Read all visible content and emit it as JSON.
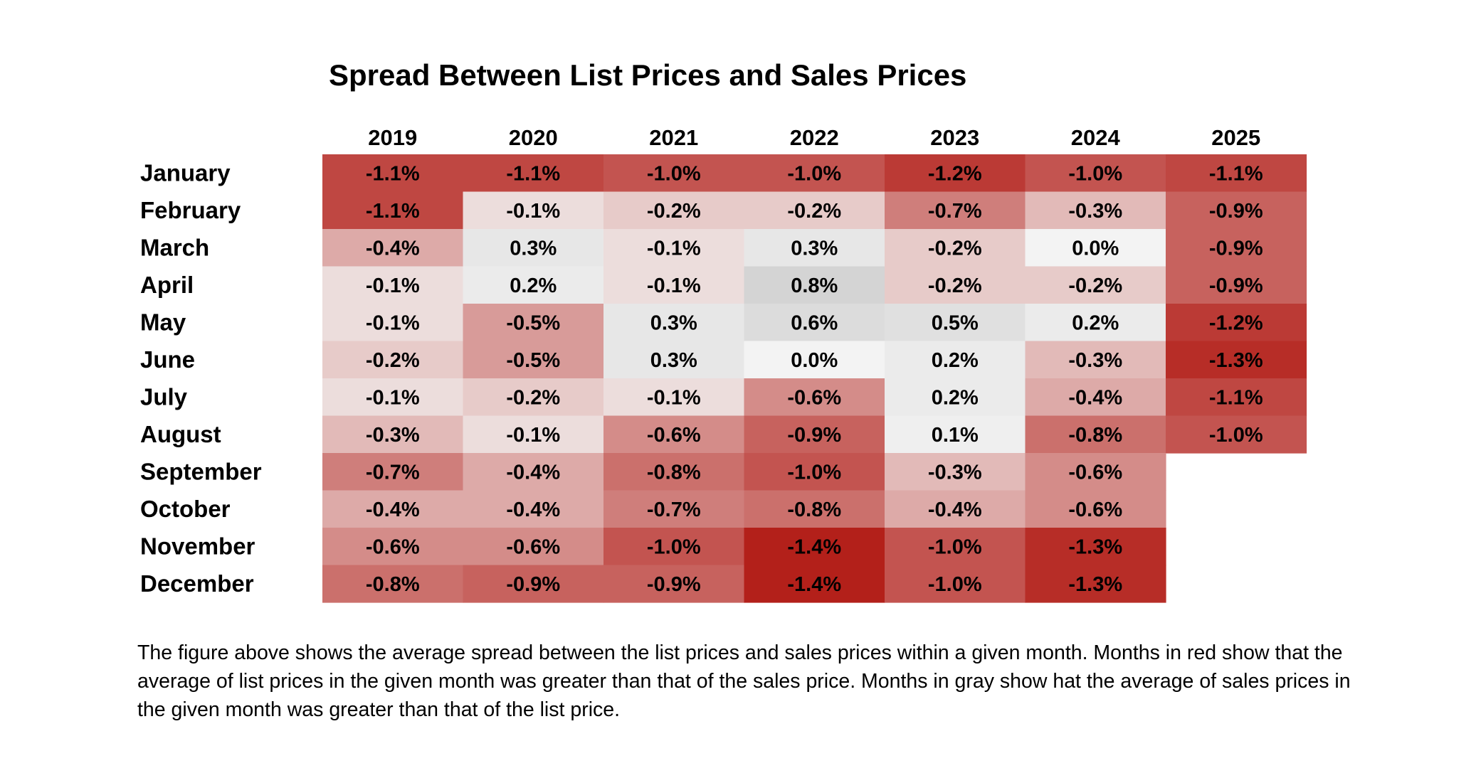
{
  "chart_data": {
    "type": "heatmap",
    "title": "Spread Between List Prices and Sales Prices",
    "columns": [
      "2019",
      "2020",
      "2021",
      "2022",
      "2023",
      "2024",
      "2025"
    ],
    "rows": [
      "January",
      "February",
      "March",
      "April",
      "May",
      "June",
      "July",
      "August",
      "September",
      "October",
      "November",
      "December"
    ],
    "values": [
      [
        -1.1,
        -1.1,
        -1.0,
        -1.0,
        -1.2,
        -1.0,
        -1.1
      ],
      [
        -1.1,
        -0.1,
        -0.2,
        -0.2,
        -0.7,
        -0.3,
        -0.9
      ],
      [
        -0.4,
        0.3,
        -0.1,
        0.3,
        -0.2,
        0.0,
        -0.9
      ],
      [
        -0.1,
        0.2,
        -0.1,
        0.8,
        -0.2,
        -0.2,
        -0.9
      ],
      [
        -0.1,
        -0.5,
        0.3,
        0.6,
        0.5,
        0.2,
        -1.2
      ],
      [
        -0.2,
        -0.5,
        0.3,
        0.0,
        0.2,
        -0.3,
        -1.3
      ],
      [
        -0.1,
        -0.2,
        -0.1,
        -0.6,
        0.2,
        -0.4,
        -1.1
      ],
      [
        -0.3,
        -0.1,
        -0.6,
        -0.9,
        0.1,
        -0.8,
        -1.0
      ],
      [
        -0.7,
        -0.4,
        -0.8,
        -1.0,
        -0.3,
        -0.6,
        null
      ],
      [
        -0.4,
        -0.4,
        -0.7,
        -0.8,
        -0.4,
        -0.6,
        null
      ],
      [
        -0.6,
        -0.6,
        -1.0,
        -1.4,
        -1.0,
        -1.3,
        null
      ],
      [
        -0.8,
        -0.9,
        -0.9,
        -1.4,
        -1.0,
        -1.3,
        null
      ]
    ],
    "value_format": "percent_one_decimal",
    "colors": {
      "negative_max": "#b3201a",
      "neutral": "#f3f3f3",
      "positive_max": "#d4d4d4"
    },
    "color_range": [
      -1.4,
      0.8
    ]
  },
  "caption": "The figure above shows the average spread between the list prices and sales prices within a given month. Months in red show that the average of list prices in the given month was greater than that of the sales price. Months in gray show hat the average of sales prices in the given month was greater than that of the list price."
}
